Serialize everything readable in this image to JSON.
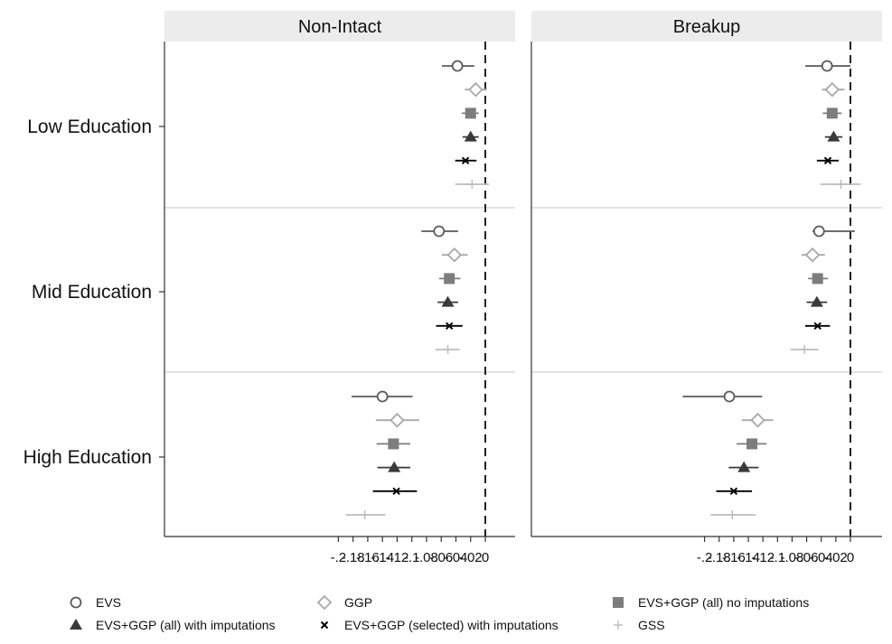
{
  "chart_data": {
    "type": "scatter",
    "subtype": "coefficient-plot",
    "panels": [
      "Non-Intact",
      "Breakup"
    ],
    "groups": [
      "Low Education",
      "Mid Education",
      "High Education"
    ],
    "x_ticks": [
      -0.2,
      -0.18,
      -0.16,
      -0.14,
      -0.12,
      -0.1,
      -0.08,
      -0.06,
      -0.04,
      -0.02,
      0
    ],
    "x_tick_labels": [
      "-.2",
      "-.18",
      "-.16",
      "-.14",
      "-.12",
      "-.1",
      "-.08",
      "-.06",
      "-.04",
      "-.02",
      "0"
    ],
    "xlim": [
      -0.22,
      0.015
    ],
    "reference_line": 0,
    "legend_position": "bottom",
    "series": [
      {
        "name": "EVS",
        "marker": "circle-hollow",
        "color": "#5a5a5a",
        "values": {
          "Non-Intact": {
            "Low Education": [
              -0.038,
              -0.059,
              -0.015
            ],
            "Mid Education": [
              -0.063,
              -0.087,
              -0.037
            ],
            "High Education": [
              -0.14,
              -0.182,
              -0.099
            ]
          },
          "Breakup": {
            "Low Education": [
              -0.032,
              -0.062,
              0.0
            ],
            "Mid Education": [
              -0.043,
              -0.052,
              0.006
            ],
            "High Education": [
              -0.166,
              -0.23,
              -0.121
            ]
          }
        }
      },
      {
        "name": "GGP",
        "marker": "diamond-hollow",
        "color": "#a8a8a8",
        "values": {
          "Non-Intact": {
            "Low Education": [
              -0.013,
              -0.028,
              0.002
            ],
            "Mid Education": [
              -0.042,
              -0.059,
              -0.024
            ],
            "High Education": [
              -0.12,
              -0.149,
              -0.09
            ]
          },
          "Breakup": {
            "Low Education": [
              -0.025,
              -0.039,
              -0.008
            ],
            "Mid Education": [
              -0.052,
              -0.067,
              -0.035
            ],
            "High Education": [
              -0.127,
              -0.149,
              -0.106
            ]
          }
        }
      },
      {
        "name": "EVS+GGP (all) no imputations",
        "marker": "square-filled",
        "color": "#7d7d7d",
        "values": {
          "Non-Intact": {
            "Low Education": [
              -0.02,
              -0.032,
              -0.009
            ],
            "Mid Education": [
              -0.049,
              -0.063,
              -0.034
            ],
            "High Education": [
              -0.125,
              -0.148,
              -0.102
            ]
          },
          "Breakup": {
            "Low Education": [
              -0.025,
              -0.038,
              -0.012
            ],
            "Mid Education": [
              -0.045,
              -0.058,
              -0.031
            ],
            "High Education": [
              -0.135,
              -0.156,
              -0.115
            ]
          }
        }
      },
      {
        "name": "EVS+GGP (all) with imputations",
        "marker": "triangle-filled",
        "color": "#3a3a3a",
        "values": {
          "Non-Intact": {
            "Low Education": [
              -0.02,
              -0.031,
              -0.009
            ],
            "Mid Education": [
              -0.051,
              -0.065,
              -0.037
            ],
            "High Education": [
              -0.124,
              -0.147,
              -0.102
            ]
          },
          "Breakup": {
            "Low Education": [
              -0.023,
              -0.035,
              -0.011
            ],
            "Mid Education": [
              -0.046,
              -0.06,
              -0.032
            ],
            "High Education": [
              -0.146,
              -0.167,
              -0.126
            ]
          }
        }
      },
      {
        "name": "EVS+GGP (selected) with imputations",
        "marker": "x",
        "color": "#000000",
        "values": {
          "Non-Intact": {
            "Low Education": [
              -0.027,
              -0.041,
              -0.012
            ],
            "Mid Education": [
              -0.049,
              -0.067,
              -0.031
            ],
            "High Education": [
              -0.121,
              -0.153,
              -0.093
            ]
          },
          "Breakup": {
            "Low Education": [
              -0.031,
              -0.046,
              -0.016
            ],
            "Mid Education": [
              -0.045,
              -0.062,
              -0.028
            ],
            "High Education": [
              -0.16,
              -0.184,
              -0.135
            ]
          }
        }
      },
      {
        "name": "GSS",
        "marker": "plus",
        "color": "#bdbdbd",
        "values": {
          "Non-Intact": {
            "Low Education": [
              -0.018,
              -0.041,
              0.005
            ],
            "Mid Education": [
              -0.051,
              -0.068,
              -0.035
            ],
            "High Education": [
              -0.164,
              -0.19,
              -0.136
            ]
          },
          "Breakup": {
            "Low Education": [
              -0.013,
              -0.041,
              0.014
            ],
            "Mid Education": [
              -0.063,
              -0.082,
              -0.044
            ],
            "High Education": [
              -0.162,
              -0.192,
              -0.13
            ]
          }
        }
      }
    ]
  }
}
